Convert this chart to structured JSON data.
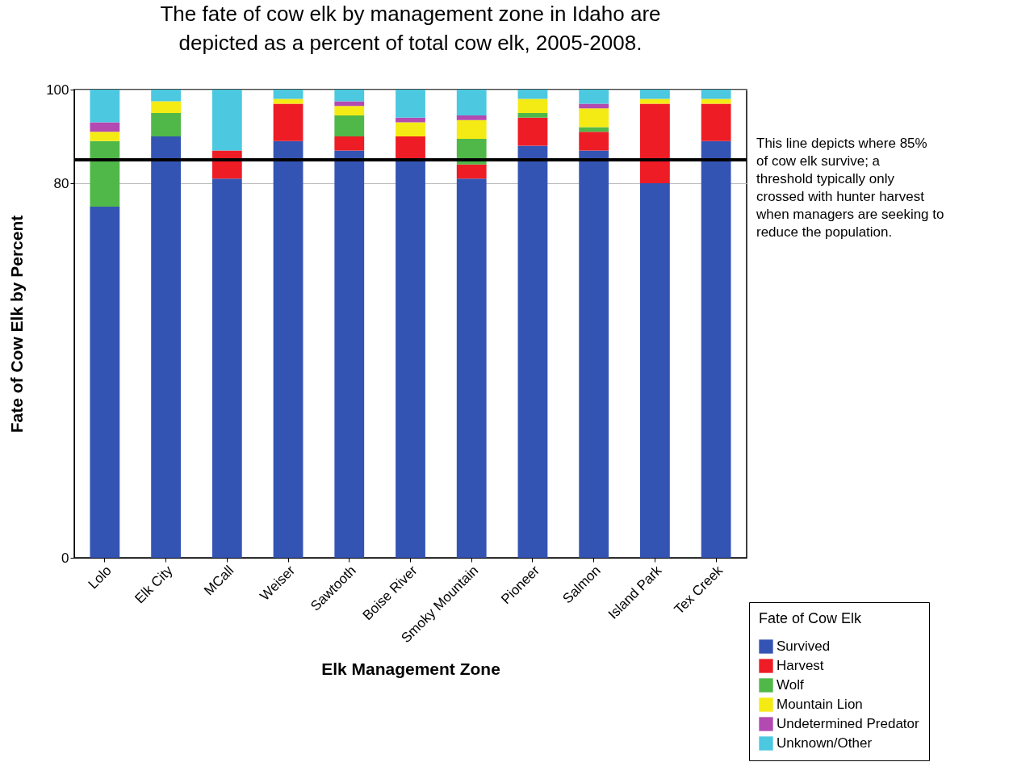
{
  "chart_data": {
    "type": "bar",
    "stacked": true,
    "title": "The fate of cow elk by management zone in Idaho are depicted as a percent of total cow elk, 2005-2008.",
    "xlabel": "Elk Management Zone",
    "ylabel": "Fate of Cow Elk by Percent",
    "legend_title": "Fate of Cow Elk",
    "categories": [
      "Lolo",
      "Elk City",
      "MCall",
      "Weiser",
      "Sawtooth",
      "Boise River",
      "Smoky Mountain",
      "Pioneer",
      "Salmon",
      "Island Park",
      "Tex Creek"
    ],
    "series": [
      {
        "name": "Survived",
        "color": "#3454b4",
        "values": [
          75,
          90,
          81,
          89,
          87,
          85,
          81,
          88,
          87,
          80,
          89
        ]
      },
      {
        "name": "Harvest",
        "color": "#ee1c25",
        "values": [
          0,
          0,
          6,
          8,
          3,
          5,
          3,
          6,
          4,
          17,
          8
        ]
      },
      {
        "name": "Wolf",
        "color": "#50b848",
        "values": [
          14,
          5,
          0,
          0,
          4.5,
          0,
          5.5,
          1,
          1,
          0,
          0
        ]
      },
      {
        "name": "Mountain Lion",
        "color": "#f5eb14",
        "values": [
          2,
          2.5,
          0,
          1,
          2,
          3,
          4,
          3,
          4,
          1,
          1
        ]
      },
      {
        "name": "Undetermined Predator",
        "color": "#b24ab2",
        "values": [
          2,
          0,
          0,
          0,
          1,
          1,
          1,
          0,
          1,
          0,
          0
        ]
      },
      {
        "name": "Unknown/Other",
        "color": "#4cc8e0",
        "values": [
          7,
          2.5,
          13,
          2,
          2.5,
          6,
          5.5,
          2,
          3,
          2,
          2
        ]
      }
    ],
    "ylim": [
      0,
      100
    ],
    "yticks": [
      0,
      80,
      100
    ],
    "grid": "y",
    "legend": "bottom right",
    "ref_lines": [
      {
        "axis": "y",
        "value": 85,
        "label": "This line depicts where 85% of cow elk survive; a threshold typically only crossed with hunter harvest when managers are seeking to reduce the population."
      }
    ]
  }
}
